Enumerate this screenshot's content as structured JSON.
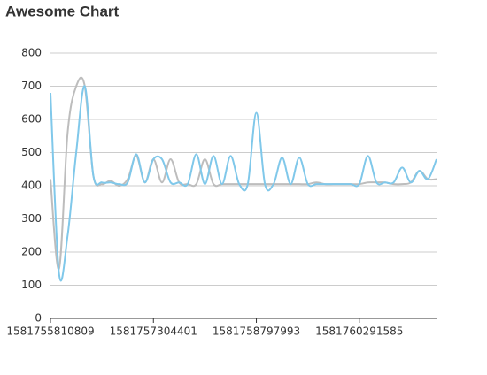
{
  "chart_data": {
    "type": "line",
    "title": "Awesome Chart",
    "x": [
      1581755810809,
      1581755935275,
      1581756059741,
      1581756184207,
      1581756308673,
      1581756433139,
      1581756557605,
      1581756682071,
      1581756806537,
      1581756931003,
      1581757055469,
      1581757179935,
      1581757304401,
      1581757428867,
      1581757553333,
      1581757677799,
      1581757802265,
      1581757926731,
      1581758051197,
      1581758175663,
      1581758300129,
      1581758424595,
      1581758549061,
      1581758673527,
      1581758797993,
      1581758922459,
      1581759046925,
      1581759171391,
      1581759295857,
      1581759420323,
      1581759544789,
      1581759669255,
      1581759793721,
      1581759918187,
      1581760042653,
      1581760167119,
      1581760291585,
      1581760416051,
      1581760540517,
      1581760664983,
      1581760789449,
      1581760913915,
      1581761038381,
      1581761162847,
      1581761287313,
      1581761411779
    ],
    "series": [
      {
        "color": "#bdbdbd",
        "values": [
          420,
          150,
          560,
          700,
          700,
          430,
          405,
          415,
          400,
          420,
          490,
          410,
          480,
          410,
          480,
          410,
          405,
          405,
          480,
          405,
          405,
          405,
          405,
          405,
          405,
          405,
          405,
          405,
          405,
          405,
          405,
          410,
          405,
          405,
          405,
          405,
          405,
          410,
          410,
          410,
          405,
          405,
          410,
          445,
          420,
          420
        ]
      },
      {
        "color": "#80c8ea",
        "values": [
          680,
          135,
          250,
          500,
          700,
          430,
          410,
          410,
          405,
          410,
          495,
          410,
          480,
          480,
          410,
          410,
          405,
          495,
          405,
          490,
          405,
          490,
          405,
          405,
          620,
          405,
          405,
          485,
          405,
          485,
          405,
          405,
          405,
          405,
          405,
          405,
          405,
          490,
          410,
          410,
          410,
          455,
          410,
          445,
          420,
          480
        ]
      }
    ],
    "xlim": [
      1581755810809,
      1581761411779
    ],
    "xticks": [
      1581755810809,
      1581757304401,
      1581758797993,
      1581760291585
    ],
    "ylim": [
      0,
      800
    ],
    "yticks": [
      0,
      100,
      200,
      300,
      400,
      500,
      600,
      700,
      800
    ],
    "grid": true
  }
}
